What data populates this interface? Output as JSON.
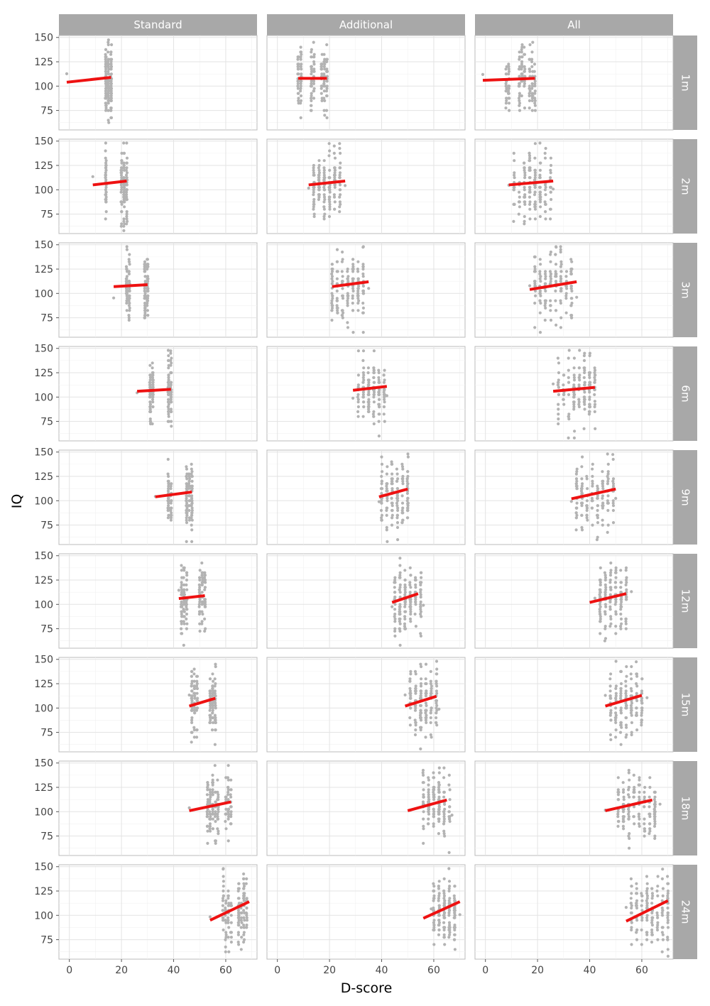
{
  "chart_data": {
    "type": "scatter",
    "xlabel": "D-score",
    "ylabel": "IQ",
    "xlim": [
      -4,
      72
    ],
    "ylim": [
      55,
      152
    ],
    "x_ticks": [
      0,
      20,
      40,
      60
    ],
    "y_ticks": [
      75,
      100,
      125,
      150
    ],
    "columns": [
      "Standard",
      "Additional",
      "All"
    ],
    "rows": [
      "1m",
      "2m",
      "3m",
      "6m",
      "9m",
      "12m",
      "15m",
      "18m",
      "24m"
    ],
    "colors": {
      "points": "#b3b3b3",
      "fit_line": "#ee1111",
      "strip": "#a8a8a8"
    },
    "panels": [
      [
        {
          "x_range": [
            -1,
            16
          ],
          "x_clusters": [
            14,
            15,
            16
          ],
          "fit": [
            [
              -1,
              104
            ],
            [
              16,
              109
            ]
          ]
        },
        {
          "x_range": [
            9,
            22
          ],
          "x_clusters": [
            14,
            20,
            21,
            22
          ],
          "fit": [
            [
              9,
              105
            ],
            [
              22,
              109
            ]
          ]
        },
        {
          "x_range": [
            17,
            30
          ],
          "x_clusters": [
            22,
            23,
            29,
            30
          ],
          "fit": [
            [
              17,
              107
            ],
            [
              30,
              109
            ]
          ]
        },
        {
          "x_range": [
            26,
            39
          ],
          "x_clusters": [
            31,
            32,
            38,
            39
          ],
          "fit": [
            [
              26,
              106
            ],
            [
              39,
              108
            ]
          ]
        },
        {
          "x_range": [
            33,
            47
          ],
          "x_clusters": [
            38,
            39,
            45,
            46,
            47
          ],
          "fit": [
            [
              33,
              104
            ],
            [
              47,
              109
            ]
          ]
        },
        {
          "x_range": [
            42,
            52
          ],
          "x_clusters": [
            43,
            44,
            45,
            50,
            51,
            52
          ],
          "fit": [
            [
              42,
              106
            ],
            [
              52,
              109
            ]
          ]
        },
        {
          "x_range": [
            46,
            56
          ],
          "x_clusters": [
            47,
            48,
            49,
            54,
            55,
            56
          ],
          "fit": [
            [
              46,
              102
            ],
            [
              56,
              110
            ]
          ]
        },
        {
          "x_range": [
            46,
            62
          ],
          "x_clusters": [
            53,
            54,
            55,
            56,
            57,
            60,
            61,
            62
          ],
          "fit": [
            [
              46,
              101
            ],
            [
              62,
              110
            ]
          ]
        },
        {
          "x_range": [
            54,
            68
          ],
          "x_clusters": [
            59,
            60,
            61,
            62,
            65,
            66,
            67,
            68
          ],
          "fit": [
            [
              54,
              95
            ],
            [
              69,
              114
            ]
          ]
        }
      ],
      [
        {
          "x_range": [
            8,
            19
          ],
          "x_clusters": [
            8,
            9,
            13,
            14,
            17,
            18,
            19
          ],
          "fit": [
            [
              8,
              108
            ],
            [
              19,
              108
            ]
          ]
        },
        {
          "x_range": [
            12,
            26
          ],
          "x_clusters": [
            14,
            16,
            18,
            20,
            22,
            24
          ],
          "fit": [
            [
              12,
              105
            ],
            [
              26,
              109
            ]
          ]
        },
        {
          "x_range": [
            21,
            35
          ],
          "x_clusters": [
            21,
            23,
            25,
            27,
            29,
            31,
            33
          ],
          "fit": [
            [
              21,
              107
            ],
            [
              35,
              112
            ]
          ]
        },
        {
          "x_range": [
            29,
            42
          ],
          "x_clusters": [
            31,
            33,
            35,
            37,
            39,
            41
          ],
          "fit": [
            [
              29,
              107
            ],
            [
              42,
              111
            ]
          ]
        },
        {
          "x_range": [
            39,
            50
          ],
          "x_clusters": [
            40,
            42,
            44,
            46,
            48,
            50
          ],
          "fit": [
            [
              39,
              104
            ],
            [
              50,
              112
            ]
          ]
        },
        {
          "x_range": [
            44,
            56
          ],
          "x_clusters": [
            45,
            47,
            49,
            51,
            53,
            55
          ],
          "fit": [
            [
              44,
              102
            ],
            [
              54,
              111
            ]
          ]
        },
        {
          "x_range": [
            49,
            62
          ],
          "x_clusters": [
            51,
            53,
            55,
            57,
            59,
            61
          ],
          "fit": [
            [
              49,
              102
            ],
            [
              61,
              112
            ]
          ]
        },
        {
          "x_range": [
            51,
            67
          ],
          "x_clusters": [
            56,
            58,
            60,
            62,
            64,
            66
          ],
          "fit": [
            [
              50,
              101
            ],
            [
              65,
              112
            ]
          ]
        },
        {
          "x_range": [
            59,
            70
          ],
          "x_clusters": [
            60,
            62,
            64,
            66,
            68
          ],
          "fit": [
            [
              56,
              97
            ],
            [
              70,
              114
            ]
          ]
        }
      ],
      [
        {
          "x_range": [
            -1,
            19
          ],
          "x_clusters": [
            8,
            9,
            13,
            14,
            15,
            17,
            18,
            19
          ],
          "fit": [
            [
              -1,
              106
            ],
            [
              19,
              108
            ]
          ]
        },
        {
          "x_range": [
            9,
            26
          ],
          "x_clusters": [
            11,
            13,
            15,
            17,
            19,
            21,
            23,
            25
          ],
          "fit": [
            [
              9,
              105
            ],
            [
              26,
              109
            ]
          ]
        },
        {
          "x_range": [
            17,
            35
          ],
          "x_clusters": [
            19,
            21,
            23,
            25,
            27,
            29,
            31,
            33
          ],
          "fit": [
            [
              17,
              104
            ],
            [
              35,
              112
            ]
          ]
        },
        {
          "x_range": [
            26,
            42
          ],
          "x_clusters": [
            28,
            30,
            32,
            34,
            36,
            38,
            40,
            42
          ],
          "fit": [
            [
              26,
              106
            ],
            [
              42,
              110
            ]
          ]
        },
        {
          "x_range": [
            33,
            50
          ],
          "x_clusters": [
            35,
            37,
            39,
            41,
            43,
            45,
            47,
            49
          ],
          "fit": [
            [
              33,
              102
            ],
            [
              50,
              112
            ]
          ]
        },
        {
          "x_range": [
            42,
            56
          ],
          "x_clusters": [
            44,
            46,
            48,
            50,
            52,
            54
          ],
          "fit": [
            [
              40,
              102
            ],
            [
              54,
              111
            ]
          ]
        },
        {
          "x_range": [
            46,
            62
          ],
          "x_clusters": [
            48,
            50,
            52,
            54,
            56,
            58,
            60
          ],
          "fit": [
            [
              46,
              102
            ],
            [
              60,
              113
            ]
          ]
        },
        {
          "x_range": [
            46,
            67
          ],
          "x_clusters": [
            51,
            53,
            55,
            57,
            59,
            61,
            63,
            65
          ],
          "fit": [
            [
              46,
              101
            ],
            [
              64,
              112
            ]
          ]
        },
        {
          "x_range": [
            54,
            70
          ],
          "x_clusters": [
            56,
            58,
            60,
            62,
            64,
            66,
            68,
            70
          ],
          "fit": [
            [
              54,
              94
            ],
            [
              70,
              115
            ]
          ]
        }
      ]
    ]
  }
}
